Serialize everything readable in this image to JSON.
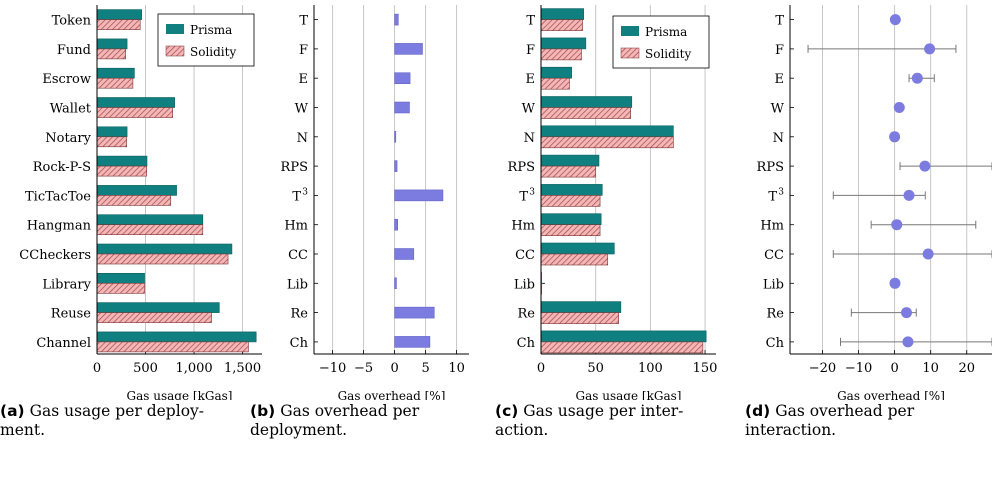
{
  "colors": {
    "prisma": "#0f7f7f",
    "solidity_fill": "#f4b6b6",
    "solidity_hatch": "#a04848",
    "overhead": "#7b7be0",
    "grid": "#c0c0c0",
    "errorbar": "#777777"
  },
  "legend": {
    "prisma": "Prisma",
    "solidity": "Solidity"
  },
  "captions": [
    {
      "label": "(a)",
      "text": "Gas usage per deploy-ment."
    },
    {
      "label": "(b)",
      "text": "Gas overhead per deployment."
    },
    {
      "label": "(c)",
      "text": "Gas usage per inter-action."
    },
    {
      "label": "(d)",
      "text": "Gas overhead per interaction."
    }
  ],
  "chart_data": [
    {
      "type": "bar",
      "xlabel": "Gas usage [kGas]",
      "categories": [
        "Token",
        "Fund",
        "Escrow",
        "Wallet",
        "Notary",
        "Rock-P-S",
        "TicTacToe",
        "Hangman",
        "CCheckers",
        "Library",
        "Reuse",
        "Channel"
      ],
      "series": [
        {
          "name": "Prisma",
          "values": [
            460,
            310,
            385,
            800,
            310,
            515,
            820,
            1090,
            1390,
            490,
            1260,
            1640
          ]
        },
        {
          "name": "Solidity",
          "values": [
            445,
            295,
            370,
            780,
            305,
            512,
            760,
            1090,
            1350,
            490,
            1180,
            1560
          ]
        }
      ],
      "xlim": [
        0,
        1700
      ],
      "xticks": [
        0,
        500,
        1000,
        1500
      ],
      "xtick_labels": [
        "0",
        "500",
        "1,000",
        "1,500"
      ],
      "grid": true,
      "legend_position": "top-right"
    },
    {
      "type": "bar",
      "xlabel": "Gas overhead [%]",
      "categories": [
        "T",
        "F",
        "E",
        "W",
        "N",
        "RPS",
        "T3",
        "Hm",
        "CC",
        "Lib",
        "Re",
        "Ch"
      ],
      "category_labels": [
        "T",
        "F",
        "E",
        "W",
        "N",
        "RPS",
        "T",
        "Hm",
        "CC",
        "Lib",
        "Re",
        "Ch"
      ],
      "values": [
        0.6,
        4.5,
        2.5,
        2.4,
        0.2,
        0.4,
        7.8,
        0.5,
        3.1,
        0.3,
        6.4,
        5.7
      ],
      "xlim": [
        -13,
        12
      ],
      "xticks": [
        -10,
        -5,
        0,
        5,
        10
      ],
      "xtick_labels": [
        "−10",
        "−5",
        "0",
        "5",
        "10"
      ],
      "grid": true
    },
    {
      "type": "bar",
      "xlabel": "Gas usage [kGas]",
      "categories": [
        "T",
        "F",
        "E",
        "W",
        "N",
        "RPS",
        "T3",
        "Hm",
        "CC",
        "Lib",
        "Re",
        "Ch"
      ],
      "category_labels": [
        "T",
        "F",
        "E",
        "W",
        "N",
        "RPS",
        "T",
        "Hm",
        "CC",
        "Lib",
        "Re",
        "Ch"
      ],
      "series": [
        {
          "name": "Prisma",
          "values": [
            39,
            41,
            28,
            83,
            121,
            53,
            56,
            55,
            67,
            0.5,
            73,
            151
          ]
        },
        {
          "name": "Solidity",
          "values": [
            38,
            37,
            26,
            82,
            121,
            50,
            54,
            54,
            61,
            0.5,
            71,
            148
          ]
        }
      ],
      "xlim": [
        0,
        160
      ],
      "xticks": [
        0,
        50,
        100,
        150
      ],
      "xtick_labels": [
        "0",
        "50",
        "100",
        "150"
      ],
      "grid": true,
      "legend_position": "top-right"
    },
    {
      "type": "scatter",
      "xlabel": "Gas overhead [%]",
      "categories": [
        "T",
        "F",
        "E",
        "W",
        "N",
        "RPS",
        "T3",
        "Hm",
        "CC",
        "Lib",
        "Re",
        "Ch"
      ],
      "category_labels": [
        "T",
        "F",
        "E",
        "W",
        "N",
        "RPS",
        "T",
        "Hm",
        "CC",
        "Lib",
        "Re",
        "Ch"
      ],
      "points": [
        {
          "x": 0.2,
          "lo": 0.2,
          "hi": 0.2
        },
        {
          "x": 9.7,
          "lo": -24,
          "hi": 17
        },
        {
          "x": 6.3,
          "lo": 4,
          "hi": 11
        },
        {
          "x": 1.3,
          "lo": 1.3,
          "hi": 1.3
        },
        {
          "x": 0.0,
          "lo": 0.0,
          "hi": 0.0
        },
        {
          "x": 8.4,
          "lo": 1.5,
          "hi": 27
        },
        {
          "x": 4.0,
          "lo": -17,
          "hi": 8.5
        },
        {
          "x": 0.6,
          "lo": -6.5,
          "hi": 22.5
        },
        {
          "x": 9.3,
          "lo": -17,
          "hi": 27
        },
        {
          "x": 0.1,
          "lo": 0.1,
          "hi": 0.1
        },
        {
          "x": 3.3,
          "lo": -12,
          "hi": 6
        },
        {
          "x": 3.7,
          "lo": -15,
          "hi": 27
        }
      ],
      "xlim": [
        -29,
        27
      ],
      "xticks": [
        -20,
        -10,
        0,
        10,
        20
      ],
      "xtick_labels": [
        "−20",
        "−10",
        "0",
        "10",
        "20"
      ],
      "grid": true
    }
  ]
}
